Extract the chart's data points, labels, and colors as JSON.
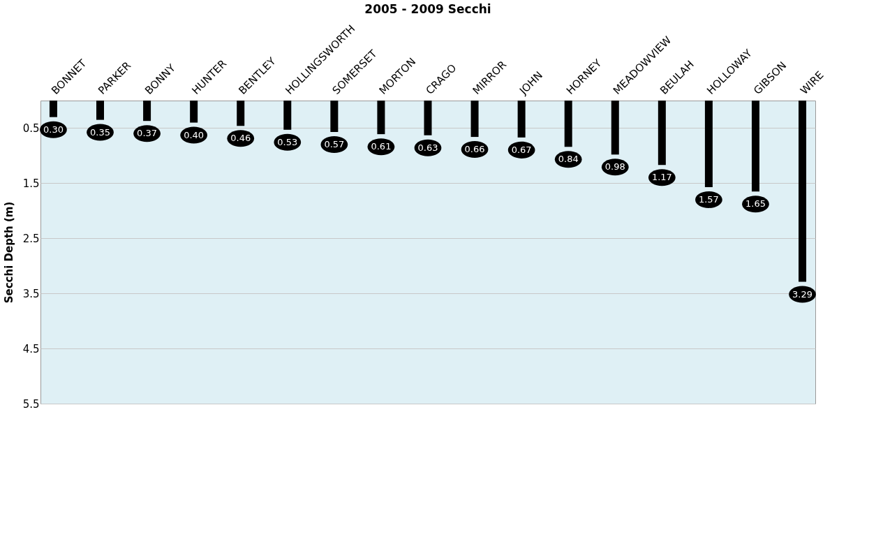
{
  "chart_data": {
    "type": "bar",
    "title": "2005 - 2009 Secchi",
    "ylabel": "Secchi Depth (m)",
    "categories": [
      "BONNET",
      "PARKER",
      "BONNY",
      "HUNTER",
      "BENTLEY",
      "HOLLINGSWORTH",
      "SOMERSET",
      "MORTON",
      "CRAGO",
      "MIRROR",
      "JOHN",
      "HORNEY",
      "MEADOWVIEW",
      "BEULAH",
      "HOLLOWAY",
      "GIBSON",
      "WIRE"
    ],
    "values": [
      0.3,
      0.35,
      0.37,
      0.4,
      0.46,
      0.53,
      0.57,
      0.61,
      0.63,
      0.66,
      0.67,
      0.84,
      0.98,
      1.17,
      1.57,
      1.65,
      3.29
    ],
    "value_labels": [
      "0.30",
      "0.35",
      "0.37",
      "0.40",
      "0.46",
      "0.53",
      "0.57",
      "0.61",
      "0.63",
      "0.66",
      "0.67",
      "0.84",
      "0.98",
      "1.17",
      "1.57",
      "1.65",
      "3.29"
    ],
    "color": "#000000",
    "ylim": [
      5.5,
      0
    ],
    "yticks": [
      0.5,
      1.5,
      2.5,
      3.5,
      4.5,
      5.5
    ],
    "grid": "y"
  }
}
